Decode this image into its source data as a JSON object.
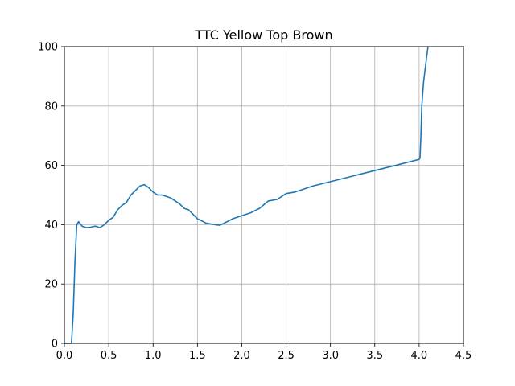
{
  "chart_data": {
    "type": "line",
    "title": "TTC Yellow Top Brown",
    "xlabel": "",
    "ylabel": "",
    "xlim": [
      0,
      4.5
    ],
    "ylim": [
      0,
      100
    ],
    "grid": true,
    "x_ticks": [
      0.0,
      0.5,
      1.0,
      1.5,
      2.0,
      2.5,
      3.0,
      3.5,
      4.0,
      4.5
    ],
    "x_tick_labels": [
      "0.0",
      "0.5",
      "1.0",
      "1.5",
      "2.0",
      "2.5",
      "3.0",
      "3.5",
      "4.0",
      "4.5"
    ],
    "y_ticks": [
      0,
      20,
      40,
      60,
      80,
      100
    ],
    "y_tick_labels": [
      "0",
      "20",
      "40",
      "60",
      "80",
      "100"
    ],
    "series": [
      {
        "color": "#1f77b4",
        "x": [
          0.0,
          0.08,
          0.1,
          0.12,
          0.14,
          0.16,
          0.2,
          0.25,
          0.3,
          0.35,
          0.4,
          0.45,
          0.5,
          0.55,
          0.6,
          0.65,
          0.7,
          0.75,
          0.8,
          0.85,
          0.9,
          0.95,
          1.0,
          1.05,
          1.1,
          1.15,
          1.2,
          1.25,
          1.3,
          1.35,
          1.4,
          1.5,
          1.6,
          1.7,
          1.75,
          1.8,
          1.9,
          2.0,
          2.1,
          2.2,
          2.3,
          2.4,
          2.5,
          2.6,
          2.7,
          2.8,
          3.0,
          3.2,
          3.4,
          3.6,
          3.8,
          4.0,
          4.01,
          4.02,
          4.03,
          4.05,
          4.07,
          4.1
        ],
        "y": [
          0,
          0,
          10,
          28,
          40,
          41,
          39.5,
          39,
          39.2,
          39.5,
          39,
          40,
          41.5,
          42.5,
          45,
          46.5,
          47.5,
          50,
          51.5,
          53,
          53.5,
          52.5,
          51,
          50,
          50,
          49.5,
          49,
          48,
          47,
          45.5,
          45,
          42,
          40.5,
          40,
          39.8,
          40.5,
          42,
          43,
          44,
          45.5,
          48,
          48.5,
          50.5,
          51,
          52,
          53,
          54.5,
          56,
          57.5,
          59,
          60.5,
          62,
          62.5,
          70,
          80,
          88,
          93,
          100
        ]
      }
    ]
  }
}
